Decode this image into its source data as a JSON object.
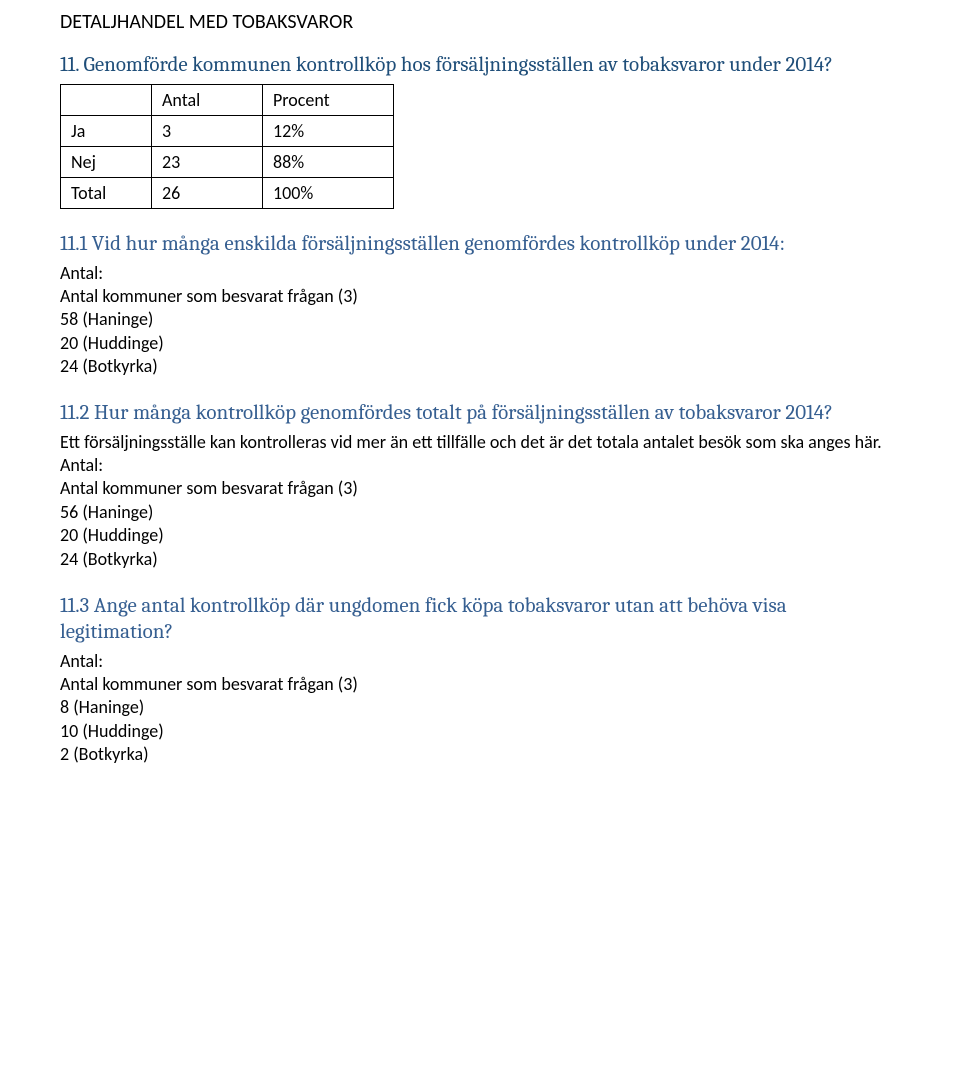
{
  "sectionTitle": "DETALJHANDEL MED TOBAKSVAROR",
  "q11": {
    "heading": "11. Genomförde kommunen kontrollköp hos försäljningsställen av tobaksvaror under 2014?",
    "table": {
      "headers": [
        "",
        "Antal",
        "Procent"
      ],
      "rows": [
        {
          "label": "Ja",
          "antal": "3",
          "procent": "12%"
        },
        {
          "label": "Nej",
          "antal": "23",
          "procent": "88%"
        },
        {
          "label": "Total",
          "antal": "26",
          "procent": "100%"
        }
      ]
    }
  },
  "q11_1": {
    "heading": "11.1 Vid hur många enskilda försäljningsställen genomfördes kontrollköp under 2014:",
    "antalLabel": "Antal:",
    "respLine": "Antal kommuner som besvarat frågan (3)",
    "lines": [
      "58 (Haninge)",
      "20 (Huddinge)",
      "24 (Botkyrka)"
    ]
  },
  "q11_2": {
    "heading": "11.2 Hur många kontrollköp genomfördes totalt på försäljningsställen av tobaksvaror 2014?",
    "note": "Ett försäljningsställe kan kontrolleras vid mer än ett tillfälle och det är det totala antalet besök som ska anges här.",
    "antalLabel": "Antal:",
    "respLine": "Antal kommuner som besvarat frågan (3)",
    "lines": [
      "56 (Haninge)",
      "20 (Huddinge)",
      "24 (Botkyrka)"
    ]
  },
  "q11_3": {
    "heading": "11.3 Ange antal kontrollköp där ungdomen fick köpa tobaksvaror utan att behöva visa legitimation?",
    "antalLabel": "Antal:",
    "respLine": "Antal kommuner som besvarat frågan (3)",
    "lines": [
      "8 (Haninge)",
      "10 (Huddinge)",
      "2 (Botkyrka)"
    ]
  }
}
